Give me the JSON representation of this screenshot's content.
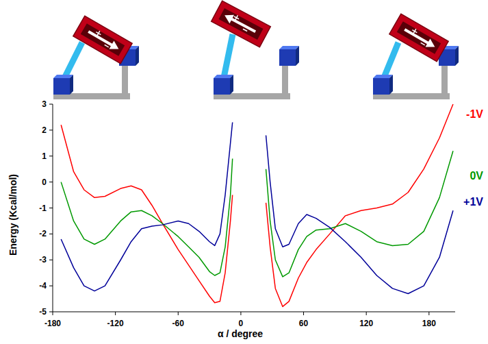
{
  "chart_data": {
    "type": "line",
    "x_label": "α / degree",
    "y_label": "Energy (Kcal/mol)",
    "x": [
      -172,
      -160,
      -150,
      -140,
      -130,
      -115,
      -105,
      -95,
      -85,
      -75,
      -60,
      -50,
      -40,
      -30,
      -25,
      -20,
      -15,
      -10,
      -8,
      8,
      24,
      28,
      33,
      40,
      46,
      55,
      63,
      72,
      85,
      100,
      115,
      130,
      145,
      160,
      175,
      190,
      203
    ],
    "series": [
      {
        "name": "-1V",
        "color": "#ff0000",
        "values": [
          2.2,
          0.4,
          -0.3,
          -0.6,
          -0.55,
          -0.25,
          -0.15,
          -0.3,
          -0.9,
          -1.6,
          -2.6,
          -3.2,
          -3.8,
          -4.4,
          -4.65,
          -4.6,
          -3.5,
          -1.5,
          -0.5,
          null,
          -0.8,
          -2.5,
          -4.1,
          -4.8,
          -4.6,
          -3.7,
          -3.1,
          -2.6,
          -2.0,
          -1.3,
          -1.1,
          -1.0,
          -0.85,
          -0.4,
          0.5,
          1.7,
          3.0
        ]
      },
      {
        "name": "0V",
        "color": "#009900",
        "values": [
          0,
          -1.5,
          -2.2,
          -2.4,
          -2.2,
          -1.5,
          -1.15,
          -1.1,
          -1.3,
          -1.6,
          -2.1,
          -2.5,
          -2.9,
          -3.45,
          -3.6,
          -3.5,
          -2.5,
          -0.5,
          0.9,
          null,
          0.5,
          -1.5,
          -3.0,
          -3.65,
          -3.5,
          -2.6,
          -2.1,
          -1.85,
          -1.8,
          -1.6,
          -1.9,
          -2.3,
          -2.45,
          -2.4,
          -1.9,
          -0.6,
          1.2
        ]
      },
      {
        "name": "+1V",
        "color": "#000099",
        "values": [
          -2.2,
          -3.3,
          -4.0,
          -4.2,
          -4.0,
          -3.0,
          -2.3,
          -1.8,
          -1.7,
          -1.65,
          -1.5,
          -1.6,
          -1.9,
          -2.3,
          -2.45,
          -2.0,
          -0.5,
          1.5,
          2.3,
          null,
          1.8,
          0,
          -1.8,
          -2.5,
          -2.4,
          -1.6,
          -1.25,
          -1.4,
          -1.75,
          -2.3,
          -2.9,
          -3.6,
          -4.1,
          -4.3,
          -4.0,
          -2.9,
          -1.1
        ]
      }
    ],
    "xlim": [
      -180,
      205
    ],
    "ylim": [
      -5,
      3
    ],
    "xticks": [
      -180,
      -120,
      -60,
      0,
      60,
      120,
      180
    ],
    "yticks": [
      -5,
      -4,
      -3,
      -2,
      -1,
      0,
      1,
      2,
      3
    ],
    "grid": false
  }
}
